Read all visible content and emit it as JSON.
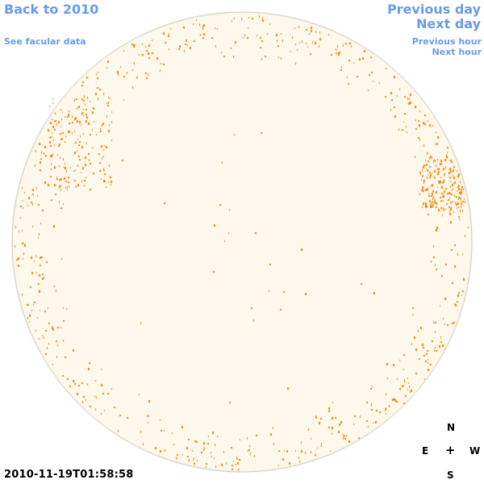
{
  "nav": {
    "back_label": "Back to 2010",
    "facular_label": "See facular data",
    "previous_day_label": "Previous day",
    "next_day_label": "Next day",
    "previous_hour_label": "Previous hour",
    "next_hour_label": "Next hour"
  },
  "timestamp": "2010-11-19T01:58:58",
  "compass": {
    "north": "N",
    "south": "S",
    "east": "E",
    "west": "W",
    "center": "+"
  },
  "colors": {
    "link": "#6a9be6",
    "disk_fill": "#fdf8eb",
    "disk_border": "#c9c0ad",
    "facula": "#e8870a"
  }
}
